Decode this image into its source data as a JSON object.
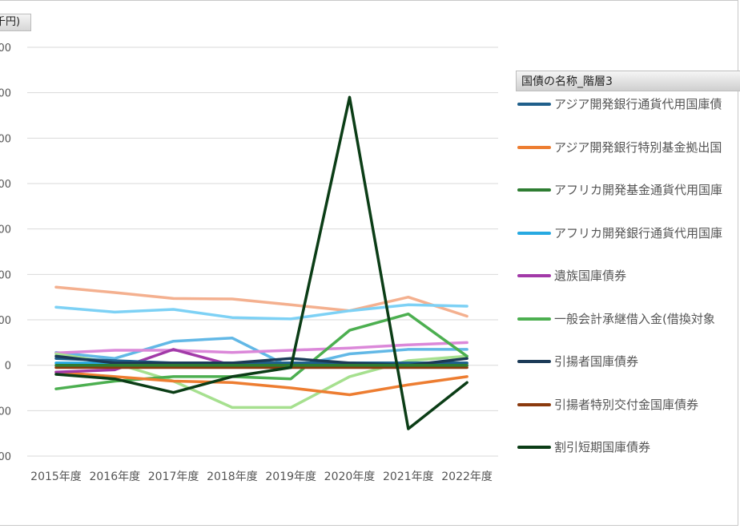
{
  "chart_data": {
    "type": "line",
    "unit_label": "千円)",
    "ytick_labels": [
      "000",
      "000",
      "000",
      "000",
      "000",
      "000",
      "000",
      "0",
      "000",
      "000"
    ],
    "categories": [
      "2015年度",
      "2016年度",
      "2017年度",
      "2018年度",
      "2019年度",
      "2020年度",
      "2021年度",
      "2022年度"
    ],
    "ylim": [
      -2,
      7
    ],
    "grid": true,
    "legend": {
      "title": "国債の名称_階層3",
      "position": "right"
    },
    "series": [
      {
        "name": "アジア開発銀行通貨代用国庫債",
        "color": "#1f5f8b",
        "values": [
          0.15,
          0.1,
          0.05,
          0.05,
          0.05,
          0.05,
          0.05,
          0.05
        ]
      },
      {
        "name": "アジア開発銀行特別基金拠出国",
        "color": "#ed7d31",
        "values": [
          -0.15,
          -0.25,
          -0.35,
          -0.38,
          -0.5,
          -0.65,
          -0.43,
          -0.25
        ]
      },
      {
        "name": "アフリカ開発基金通貨代用国庫",
        "color": "#2e7d32",
        "values": [
          0.0,
          0.0,
          0.0,
          0.0,
          0.0,
          0.0,
          0.0,
          0.0
        ]
      },
      {
        "name": "アフリカ開発銀行通貨代用国庫",
        "color": "#27a9e1",
        "values": [
          0.05,
          0.05,
          0.05,
          0.05,
          0.05,
          0.05,
          0.05,
          0.05
        ]
      },
      {
        "name": "遺族国庫債券",
        "color": "#a23aa8",
        "values": [
          -0.15,
          -0.1,
          0.35,
          0.0,
          0.0,
          0.0,
          0.0,
          0.0
        ]
      },
      {
        "name": "一般会計承継借入金(借換対象",
        "color": "#4caf50",
        "values": [
          -0.52,
          -0.35,
          -0.25,
          -0.25,
          -0.3,
          0.77,
          1.13,
          0.2
        ]
      },
      {
        "name": "引揚者国庫債券",
        "color": "#1b3a57",
        "values": [
          0.2,
          0.05,
          0.05,
          0.05,
          0.15,
          0.05,
          0.0,
          0.15
        ]
      },
      {
        "name": "引揚者特別交付金国庫債券",
        "color": "#8b3a0e",
        "values": [
          -0.05,
          -0.05,
          -0.05,
          -0.05,
          -0.05,
          -0.05,
          -0.05,
          -0.05
        ]
      },
      {
        "name": "割引短期国庫債券",
        "color": "#0b3d16",
        "values": [
          -0.2,
          -0.3,
          -0.6,
          -0.25,
          -0.05,
          5.9,
          -1.4,
          -0.38
        ]
      },
      {
        "name": "",
        "color": "#f4b08f",
        "values": [
          1.72,
          1.6,
          1.47,
          1.46,
          1.33,
          1.2,
          1.5,
          1.08
        ]
      },
      {
        "name": "",
        "color": "#7dd1f5",
        "values": [
          1.28,
          1.17,
          1.23,
          1.05,
          1.02,
          1.2,
          1.33,
          1.3
        ]
      },
      {
        "name": "",
        "color": "#62b8e6",
        "values": [
          0.28,
          0.15,
          0.53,
          0.6,
          -0.05,
          0.25,
          0.35,
          0.35
        ]
      },
      {
        "name": "",
        "color": "#db88d9",
        "values": [
          0.27,
          0.33,
          0.33,
          0.28,
          0.33,
          0.38,
          0.45,
          0.5
        ]
      },
      {
        "name": "",
        "color": "#a6e08f",
        "values": [
          0.25,
          0.05,
          -0.35,
          -0.93,
          -0.93,
          -0.25,
          0.1,
          0.2
        ]
      }
    ]
  }
}
